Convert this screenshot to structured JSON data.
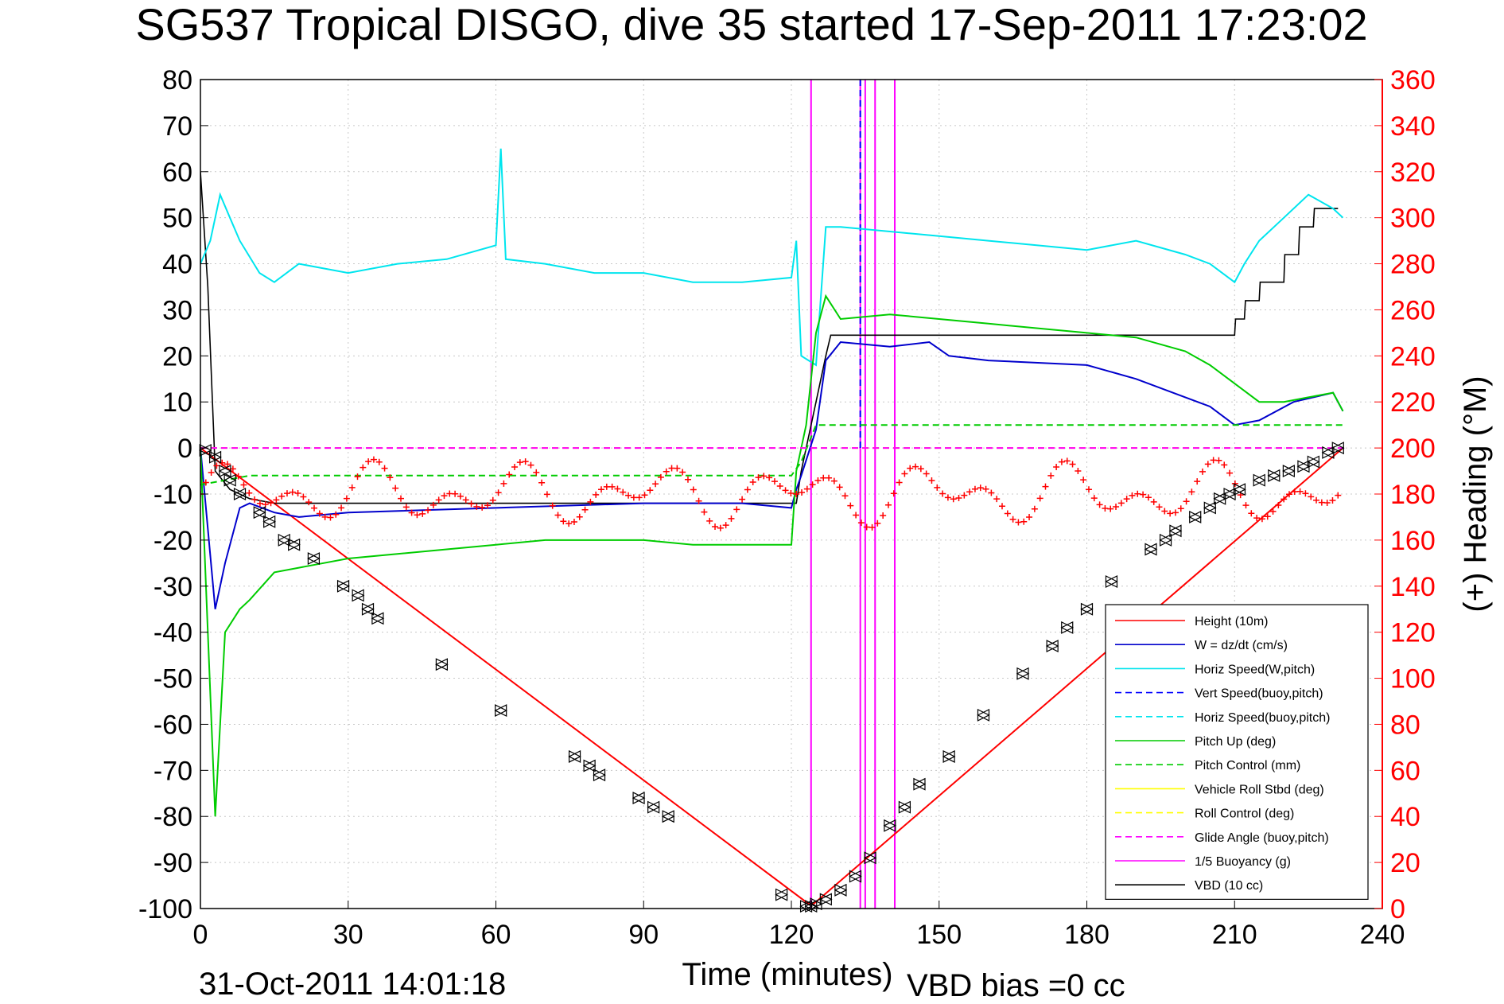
{
  "chart_data": {
    "type": "line",
    "title": "SG537 Tropical DISGO, dive 35 started 17-Sep-2011 17:23:02",
    "xlabel": "Time (minutes)",
    "ylabel_right": "(+) Heading (°M)",
    "footer_date": "31-Oct-2011 14:01:18",
    "footer_bias": "VBD bias =0 cc",
    "xlim": [
      0,
      240
    ],
    "ylim": [
      -100,
      80
    ],
    "y2lim": [
      0,
      360
    ],
    "xticks": [
      "0",
      "30",
      "60",
      "90",
      "120",
      "150",
      "180",
      "210",
      "240"
    ],
    "yticks": [
      "80",
      "70",
      "60",
      "50",
      "40",
      "30",
      "20",
      "10",
      "0",
      "-10",
      "-20",
      "-30",
      "-40",
      "-50",
      "-60",
      "-70",
      "-80",
      "-90",
      "-100"
    ],
    "y2ticks": [
      "360",
      "340",
      "320",
      "300",
      "280",
      "260",
      "240",
      "220",
      "200",
      "180",
      "160",
      "140",
      "120",
      "100",
      "80",
      "60",
      "40",
      "20",
      "0"
    ],
    "grid": true,
    "legend_position": "lower-right",
    "colors": {
      "height": "#ff0000",
      "w": "#0000cc",
      "horiz_w": "#00e5ee",
      "vert_buoy": "#0000ff",
      "horiz_buoy": "#00e5ee",
      "pitch": "#00cc00",
      "pitch_ctrl": "#00cc00",
      "roll": "#ffff00",
      "roll_ctrl": "#ffff00",
      "glide": "#ff00ff",
      "buoyancy": "#ff00ff",
      "vbd": "#000000",
      "heading": "#ff0000",
      "right_axis": "#ff0000"
    },
    "legend": [
      {
        "key": "height",
        "label": "Height (10m)",
        "dash": false
      },
      {
        "key": "w",
        "label": "W = dz/dt (cm/s)",
        "dash": false
      },
      {
        "key": "horiz_w",
        "label": "Horiz Speed(W,pitch)",
        "dash": false
      },
      {
        "key": "vert_buoy",
        "label": "Vert Speed(buoy,pitch)",
        "dash": true
      },
      {
        "key": "horiz_buoy",
        "label": "Horiz Speed(buoy,pitch)",
        "dash": true
      },
      {
        "key": "pitch",
        "label": "Pitch Up (deg)",
        "dash": false
      },
      {
        "key": "pitch_ctrl",
        "label": "Pitch Control (mm)",
        "dash": true
      },
      {
        "key": "roll",
        "label": "Vehicle Roll Stbd (deg)",
        "dash": false
      },
      {
        "key": "roll_ctrl",
        "label": "Roll Control (deg)",
        "dash": true
      },
      {
        "key": "glide",
        "label": "Glide Angle (buoy,pitch)",
        "dash": true
      },
      {
        "key": "buoyancy",
        "label": "1/5 Buoyancy (g)",
        "dash": false
      },
      {
        "key": "vbd",
        "label": "VBD (10 cc)",
        "dash": false
      }
    ],
    "series": [
      {
        "key": "height",
        "x": [
          0,
          123.5,
          124.5,
          232
        ],
        "y": [
          0,
          -99,
          -99,
          0
        ]
      },
      {
        "key": "vbd",
        "x": [
          0,
          1.5,
          3,
          6,
          10,
          15,
          120,
          121,
          122,
          125,
          127,
          128,
          210,
          210.2,
          212,
          212.2,
          215,
          215.2,
          220,
          220.2,
          223,
          223.2,
          226,
          226.2,
          231
        ],
        "y": [
          60,
          35,
          -5,
          -9,
          -11,
          -12,
          -12,
          -12,
          -5,
          10,
          20,
          24.5,
          24.5,
          28,
          28,
          32,
          32,
          36,
          36,
          42,
          42,
          48,
          48,
          52,
          52
        ]
      },
      {
        "key": "w",
        "x": [
          0,
          3,
          5,
          8,
          10,
          15,
          20,
          30,
          60,
          90,
          110,
          120,
          121,
          122,
          125,
          127,
          130,
          140,
          148,
          152,
          160,
          180,
          190,
          200,
          205,
          210,
          215,
          222,
          230,
          232
        ],
        "y": [
          0,
          -35,
          -25,
          -13,
          -12,
          -14,
          -15,
          -14,
          -13,
          -12,
          -12,
          -13,
          -9,
          -6,
          4,
          19,
          23,
          22,
          23,
          20,
          19,
          18,
          15,
          11,
          9,
          5,
          6,
          10,
          12,
          8
        ]
      },
      {
        "key": "horiz_w",
        "x": [
          0,
          2,
          4,
          6,
          8,
          12,
          15,
          20,
          30,
          40,
          50,
          60,
          61,
          62,
          70,
          80,
          90,
          100,
          110,
          120,
          121,
          122,
          125,
          127,
          130,
          140,
          150,
          160,
          170,
          180,
          190,
          200,
          205,
          210,
          212,
          215,
          220,
          225,
          230,
          232
        ],
        "y": [
          40,
          45,
          55,
          50,
          45,
          38,
          36,
          40,
          38,
          40,
          41,
          44,
          65,
          41,
          40,
          38,
          38,
          36,
          36,
          37,
          45,
          20,
          18,
          48,
          48,
          47,
          46,
          45,
          44,
          43,
          45,
          42,
          40,
          36,
          40,
          45,
          50,
          55,
          52,
          50
        ]
      },
      {
        "key": "pitch",
        "x": [
          0,
          3,
          5,
          8,
          10,
          15,
          20,
          25,
          30,
          40,
          50,
          60,
          70,
          80,
          90,
          100,
          110,
          120,
          121,
          123,
          125,
          127,
          130,
          140,
          150,
          160,
          170,
          180,
          190,
          200,
          205,
          210,
          215,
          220,
          225,
          230,
          232
        ],
        "y": [
          0,
          -80,
          -40,
          -35,
          -33,
          -27,
          -26,
          -25,
          -24,
          -23,
          -22,
          -21,
          -20,
          -20,
          -20,
          -21,
          -21,
          -21,
          -5,
          5,
          25,
          33,
          28,
          29,
          28,
          27,
          26,
          25,
          24,
          21,
          18,
          14,
          10,
          10,
          11,
          12,
          8
        ]
      },
      {
        "key": "pitch_ctrl",
        "dash": true,
        "x": [
          0,
          10,
          60,
          120,
          122,
          125,
          232
        ],
        "y": [
          -8,
          -6,
          -6,
          -6,
          -3,
          5,
          5
        ]
      },
      {
        "key": "roll_ctrl",
        "dash": true,
        "x": [
          0,
          232
        ],
        "y": [
          0,
          0
        ]
      },
      {
        "key": "glide",
        "dash": true,
        "x": [
          0,
          232
        ],
        "y": [
          0,
          0
        ]
      }
    ],
    "markers_height": [
      [
        1,
        -0.5
      ],
      [
        3,
        -2
      ],
      [
        5,
        -5
      ],
      [
        6,
        -7
      ],
      [
        8,
        -10
      ],
      [
        12,
        -14
      ],
      [
        14,
        -16
      ],
      [
        17,
        -20
      ],
      [
        19,
        -21
      ],
      [
        23,
        -24
      ],
      [
        29,
        -30
      ],
      [
        32,
        -32
      ],
      [
        34,
        -35
      ],
      [
        36,
        -37
      ],
      [
        49,
        -47
      ],
      [
        61,
        -57
      ],
      [
        76,
        -67
      ],
      [
        79,
        -69
      ],
      [
        81,
        -71
      ],
      [
        89,
        -76
      ],
      [
        92,
        -78
      ],
      [
        95,
        -80
      ],
      [
        118,
        -97
      ],
      [
        123,
        -99.5
      ],
      [
        124,
        -99.5
      ],
      [
        125,
        -99
      ],
      [
        127,
        -98
      ],
      [
        130,
        -96
      ],
      [
        133,
        -93
      ],
      [
        136,
        -89
      ],
      [
        140,
        -82
      ],
      [
        143,
        -78
      ],
      [
        146,
        -73
      ],
      [
        152,
        -67
      ],
      [
        159,
        -58
      ],
      [
        167,
        -49
      ],
      [
        173,
        -43
      ],
      [
        176,
        -39
      ],
      [
        180,
        -35
      ],
      [
        185,
        -29
      ],
      [
        193,
        -22
      ],
      [
        196,
        -20
      ],
      [
        198,
        -18
      ],
      [
        202,
        -15
      ],
      [
        205,
        -13
      ],
      [
        207,
        -11
      ],
      [
        209,
        -10
      ],
      [
        211,
        -9
      ],
      [
        215,
        -7
      ],
      [
        218,
        -6
      ],
      [
        221,
        -5
      ],
      [
        224,
        -4
      ],
      [
        226,
        -3
      ],
      [
        229,
        -1
      ],
      [
        231,
        0
      ]
    ],
    "heading": {
      "x_range": [
        0,
        232
      ],
      "mean_deg": 180,
      "amplitude_deg": 15
    },
    "buoyancy_lines_x": [
      124,
      134,
      135,
      137,
      141
    ],
    "vert_speed_line_x": 134
  }
}
